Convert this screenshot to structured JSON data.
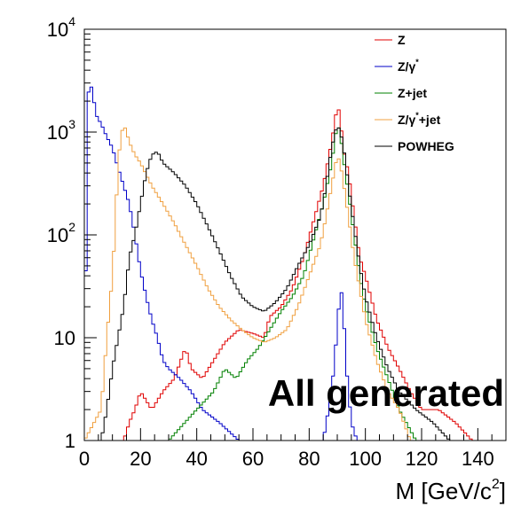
{
  "chart_data": {
    "type": "line",
    "title": "",
    "xlabel": "M [GeV/c",
    "xlabel_sup": "2",
    "xlabel_close": "]",
    "ylabel": "",
    "xlim": [
      0,
      150
    ],
    "ylim": [
      1,
      10000
    ],
    "y_scale": "log",
    "grid": false,
    "legend_position": "top-right",
    "x_tick_labels": [
      "0",
      "20",
      "40",
      "60",
      "80",
      "100",
      "120",
      "140"
    ],
    "y_tick_labels": [
      {
        "value": 1,
        "base": "1",
        "exp": ""
      },
      {
        "value": 10,
        "base": "10",
        "exp": ""
      },
      {
        "value": 100,
        "base": "10",
        "exp": "2"
      },
      {
        "value": 1000,
        "base": "10",
        "exp": "3"
      },
      {
        "value": 10000,
        "base": "10",
        "exp": "4"
      }
    ],
    "annotation": "All generated",
    "bin_width": 1,
    "series": [
      {
        "name": "Z",
        "color": "#e00000",
        "points": [
          [
            0,
            1
          ],
          [
            10,
            1
          ],
          [
            14,
            1
          ],
          [
            16,
            1.5
          ],
          [
            18,
            2
          ],
          [
            20,
            3
          ],
          [
            24,
            2
          ],
          [
            28,
            3
          ],
          [
            32,
            4
          ],
          [
            36,
            8
          ],
          [
            38,
            5
          ],
          [
            42,
            4
          ],
          [
            46,
            6
          ],
          [
            50,
            9
          ],
          [
            55,
            12
          ],
          [
            60,
            11
          ],
          [
            64,
            10
          ],
          [
            66,
            16
          ],
          [
            70,
            20
          ],
          [
            74,
            30
          ],
          [
            78,
            60
          ],
          [
            82,
            150
          ],
          [
            85,
            300
          ],
          [
            88,
            800
          ],
          [
            90,
            1800
          ],
          [
            91,
            1500
          ],
          [
            92,
            700
          ],
          [
            94,
            400
          ],
          [
            96,
            150
          ],
          [
            98,
            60
          ],
          [
            100,
            40
          ],
          [
            104,
            15
          ],
          [
            108,
            8
          ],
          [
            112,
            5
          ],
          [
            116,
            3
          ],
          [
            120,
            2
          ],
          [
            126,
            2
          ],
          [
            132,
            1.5
          ],
          [
            138,
            1
          ],
          [
            150,
            1
          ]
        ]
      },
      {
        "name": "Z/γ*",
        "color": "#0000c8",
        "points": [
          [
            0,
            1
          ],
          [
            1,
            2000
          ],
          [
            2,
            3000
          ],
          [
            3,
            2500
          ],
          [
            4,
            1500
          ],
          [
            6,
            1200
          ],
          [
            8,
            900
          ],
          [
            10,
            700
          ],
          [
            12,
            450
          ],
          [
            14,
            300
          ],
          [
            16,
            200
          ],
          [
            18,
            100
          ],
          [
            20,
            45
          ],
          [
            22,
            25
          ],
          [
            24,
            15
          ],
          [
            26,
            10
          ],
          [
            28,
            6
          ],
          [
            30,
            5
          ],
          [
            34,
            4
          ],
          [
            38,
            3
          ],
          [
            42,
            2
          ],
          [
            48,
            1.5
          ],
          [
            55,
            1
          ],
          [
            85,
            1
          ],
          [
            88,
            3
          ],
          [
            90,
            12
          ],
          [
            91,
            30
          ],
          [
            92,
            25
          ],
          [
            93,
            6
          ],
          [
            95,
            1.5
          ],
          [
            97,
            1
          ],
          [
            150,
            1
          ]
        ]
      },
      {
        "name": "Z+jet",
        "color": "#008000",
        "points": [
          [
            0,
            1
          ],
          [
            30,
            1
          ],
          [
            40,
            2
          ],
          [
            46,
            3
          ],
          [
            50,
            5
          ],
          [
            54,
            4
          ],
          [
            58,
            6
          ],
          [
            62,
            8
          ],
          [
            66,
            12
          ],
          [
            70,
            18
          ],
          [
            74,
            25
          ],
          [
            78,
            40
          ],
          [
            82,
            100
          ],
          [
            85,
            200
          ],
          [
            88,
            500
          ],
          [
            90,
            1200
          ],
          [
            91,
            1000
          ],
          [
            92,
            600
          ],
          [
            94,
            250
          ],
          [
            96,
            100
          ],
          [
            98,
            40
          ],
          [
            100,
            20
          ],
          [
            104,
            8
          ],
          [
            108,
            4
          ],
          [
            112,
            2
          ],
          [
            118,
            1
          ],
          [
            150,
            1
          ]
        ]
      },
      {
        "name": "Z/γ*+jet",
        "color": "#f0a040",
        "points": [
          [
            0,
            1
          ],
          [
            6,
            2
          ],
          [
            8,
            10
          ],
          [
            10,
            40
          ],
          [
            11,
            120
          ],
          [
            12,
            500
          ],
          [
            13,
            900
          ],
          [
            14,
            1200
          ],
          [
            15,
            1000
          ],
          [
            16,
            800
          ],
          [
            18,
            600
          ],
          [
            20,
            500
          ],
          [
            24,
            300
          ],
          [
            28,
            200
          ],
          [
            32,
            130
          ],
          [
            36,
            80
          ],
          [
            40,
            50
          ],
          [
            44,
            30
          ],
          [
            48,
            20
          ],
          [
            52,
            15
          ],
          [
            56,
            12
          ],
          [
            60,
            10
          ],
          [
            64,
            9
          ],
          [
            68,
            10
          ],
          [
            72,
            12
          ],
          [
            76,
            20
          ],
          [
            80,
            40
          ],
          [
            84,
            80
          ],
          [
            86,
            150
          ],
          [
            88,
            300
          ],
          [
            90,
            600
          ],
          [
            91,
            500
          ],
          [
            92,
            350
          ],
          [
            94,
            150
          ],
          [
            96,
            60
          ],
          [
            98,
            30
          ],
          [
            100,
            15
          ],
          [
            104,
            6
          ],
          [
            108,
            3
          ],
          [
            112,
            2
          ],
          [
            116,
            1
          ],
          [
            150,
            1
          ]
        ]
      },
      {
        "name": "POWHEG",
        "color": "#000000",
        "points": [
          [
            0,
            1
          ],
          [
            6,
            1
          ],
          [
            8,
            2
          ],
          [
            10,
            5
          ],
          [
            12,
            10
          ],
          [
            14,
            20
          ],
          [
            16,
            60
          ],
          [
            18,
            100
          ],
          [
            20,
            200
          ],
          [
            22,
            400
          ],
          [
            24,
            600
          ],
          [
            26,
            650
          ],
          [
            28,
            500
          ],
          [
            32,
            400
          ],
          [
            36,
            300
          ],
          [
            40,
            200
          ],
          [
            44,
            120
          ],
          [
            48,
            70
          ],
          [
            52,
            40
          ],
          [
            56,
            25
          ],
          [
            60,
            20
          ],
          [
            64,
            18
          ],
          [
            68,
            22
          ],
          [
            72,
            30
          ],
          [
            76,
            50
          ],
          [
            80,
            80
          ],
          [
            84,
            150
          ],
          [
            86,
            300
          ],
          [
            88,
            700
          ],
          [
            90,
            1200
          ],
          [
            91,
            1000
          ],
          [
            92,
            800
          ],
          [
            94,
            300
          ],
          [
            96,
            120
          ],
          [
            98,
            50
          ],
          [
            100,
            25
          ],
          [
            104,
            10
          ],
          [
            108,
            5
          ],
          [
            112,
            3
          ],
          [
            118,
            2
          ],
          [
            124,
            1.5
          ],
          [
            130,
            1
          ],
          [
            150,
            1
          ]
        ]
      }
    ]
  }
}
